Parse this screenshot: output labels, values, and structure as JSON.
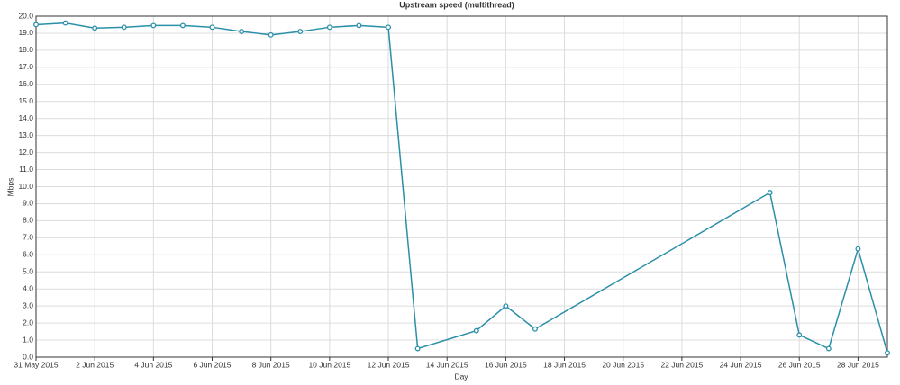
{
  "chart_data": {
    "type": "line",
    "title": "Upstream speed (multithread)",
    "x_label": "Day",
    "y_label": "Mbps",
    "x": [
      "2015-05-31",
      "2015-06-01",
      "2015-06-02",
      "2015-06-03",
      "2015-06-04",
      "2015-06-05",
      "2015-06-06",
      "2015-06-07",
      "2015-06-08",
      "2015-06-09",
      "2015-06-10",
      "2015-06-11",
      "2015-06-12",
      "2015-06-13",
      "2015-06-15",
      "2015-06-16",
      "2015-06-17",
      "2015-06-25",
      "2015-06-26",
      "2015-06-27",
      "2015-06-28",
      "2015-06-29"
    ],
    "series": [
      {
        "name": "Upstream speed",
        "color": "#2a8fa8",
        "values": [
          19.5,
          19.6,
          19.3,
          19.35,
          19.45,
          19.45,
          19.35,
          19.1,
          18.9,
          19.1,
          19.35,
          19.45,
          19.35,
          0.5,
          1.55,
          3.0,
          1.65,
          9.65,
          1.3,
          0.5,
          6.35,
          0.25
        ]
      }
    ],
    "xlim": [
      "2015-05-31",
      "2015-06-29"
    ],
    "xticks": [
      {
        "value": "2015-05-31",
        "label": "31 May 2015"
      },
      {
        "value": "2015-06-02",
        "label": "2 Jun 2015"
      },
      {
        "value": "2015-06-04",
        "label": "4 Jun 2015"
      },
      {
        "value": "2015-06-06",
        "label": "6 Jun 2015"
      },
      {
        "value": "2015-06-08",
        "label": "8 Jun 2015"
      },
      {
        "value": "2015-06-10",
        "label": "10 Jun 2015"
      },
      {
        "value": "2015-06-12",
        "label": "12 Jun 2015"
      },
      {
        "value": "2015-06-14",
        "label": "14 Jun 2015"
      },
      {
        "value": "2015-06-16",
        "label": "16 Jun 2015"
      },
      {
        "value": "2015-06-18",
        "label": "18 Jun 2015"
      },
      {
        "value": "2015-06-20",
        "label": "20 Jun 2015"
      },
      {
        "value": "2015-06-22",
        "label": "22 Jun 2015"
      },
      {
        "value": "2015-06-24",
        "label": "24 Jun 2015"
      },
      {
        "value": "2015-06-26",
        "label": "26 Jun 2015"
      },
      {
        "value": "2015-06-28",
        "label": "28 Jun 2015"
      }
    ],
    "ylim": [
      0,
      20
    ],
    "yticks": [
      {
        "value": 0,
        "label": "0.0"
      },
      {
        "value": 1,
        "label": "1.0"
      },
      {
        "value": 2,
        "label": "2.0"
      },
      {
        "value": 3,
        "label": "3.0"
      },
      {
        "value": 4,
        "label": "4.0"
      },
      {
        "value": 5,
        "label": "5.0"
      },
      {
        "value": 6,
        "label": "6.0"
      },
      {
        "value": 7,
        "label": "7.0"
      },
      {
        "value": 8,
        "label": "8.0"
      },
      {
        "value": 9,
        "label": "9.0"
      },
      {
        "value": 10,
        "label": "10.0"
      },
      {
        "value": 11,
        "label": "11.0"
      },
      {
        "value": 12,
        "label": "12.0"
      },
      {
        "value": 13,
        "label": "13.0"
      },
      {
        "value": 14,
        "label": "14.0"
      },
      {
        "value": 15,
        "label": "15.0"
      },
      {
        "value": 16,
        "label": "16.0"
      },
      {
        "value": 17,
        "label": "17.0"
      },
      {
        "value": 18,
        "label": "18.0"
      },
      {
        "value": 19,
        "label": "19.0"
      },
      {
        "value": 20,
        "label": "20.0"
      }
    ],
    "grid": true
  }
}
